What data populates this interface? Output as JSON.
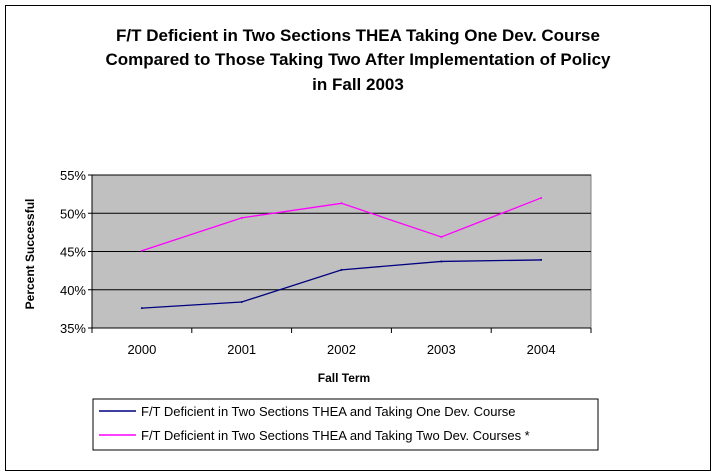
{
  "chart_data": {
    "type": "line",
    "title_lines": [
      "F/T Deficient in Two Sections THEA Taking One Dev. Course",
      "Compared to Those Taking Two After Implementation of Policy",
      "in Fall 2003"
    ],
    "xlabel": "Fall Term",
    "ylabel": "Percent Successful",
    "categories": [
      "2000",
      "2001",
      "2002",
      "2003",
      "2004"
    ],
    "ylim": [
      35,
      55
    ],
    "yticks": [
      "35%",
      "40%",
      "45%",
      "50%",
      "55%"
    ],
    "grid": true,
    "plot_background": "#c0c0c0",
    "legend_position": "bottom",
    "series": [
      {
        "name": "F/T Deficient in Two Sections THEA and Taking One Dev. Course",
        "color": "#000080",
        "values": [
          37.6,
          38.4,
          42.6,
          43.7,
          43.9
        ]
      },
      {
        "name": "F/T Deficient in Two Sections THEA and Taking Two Dev. Courses *",
        "color": "#ff00ff",
        "values": [
          45.1,
          49.4,
          51.3,
          46.9,
          52.0
        ]
      }
    ]
  }
}
